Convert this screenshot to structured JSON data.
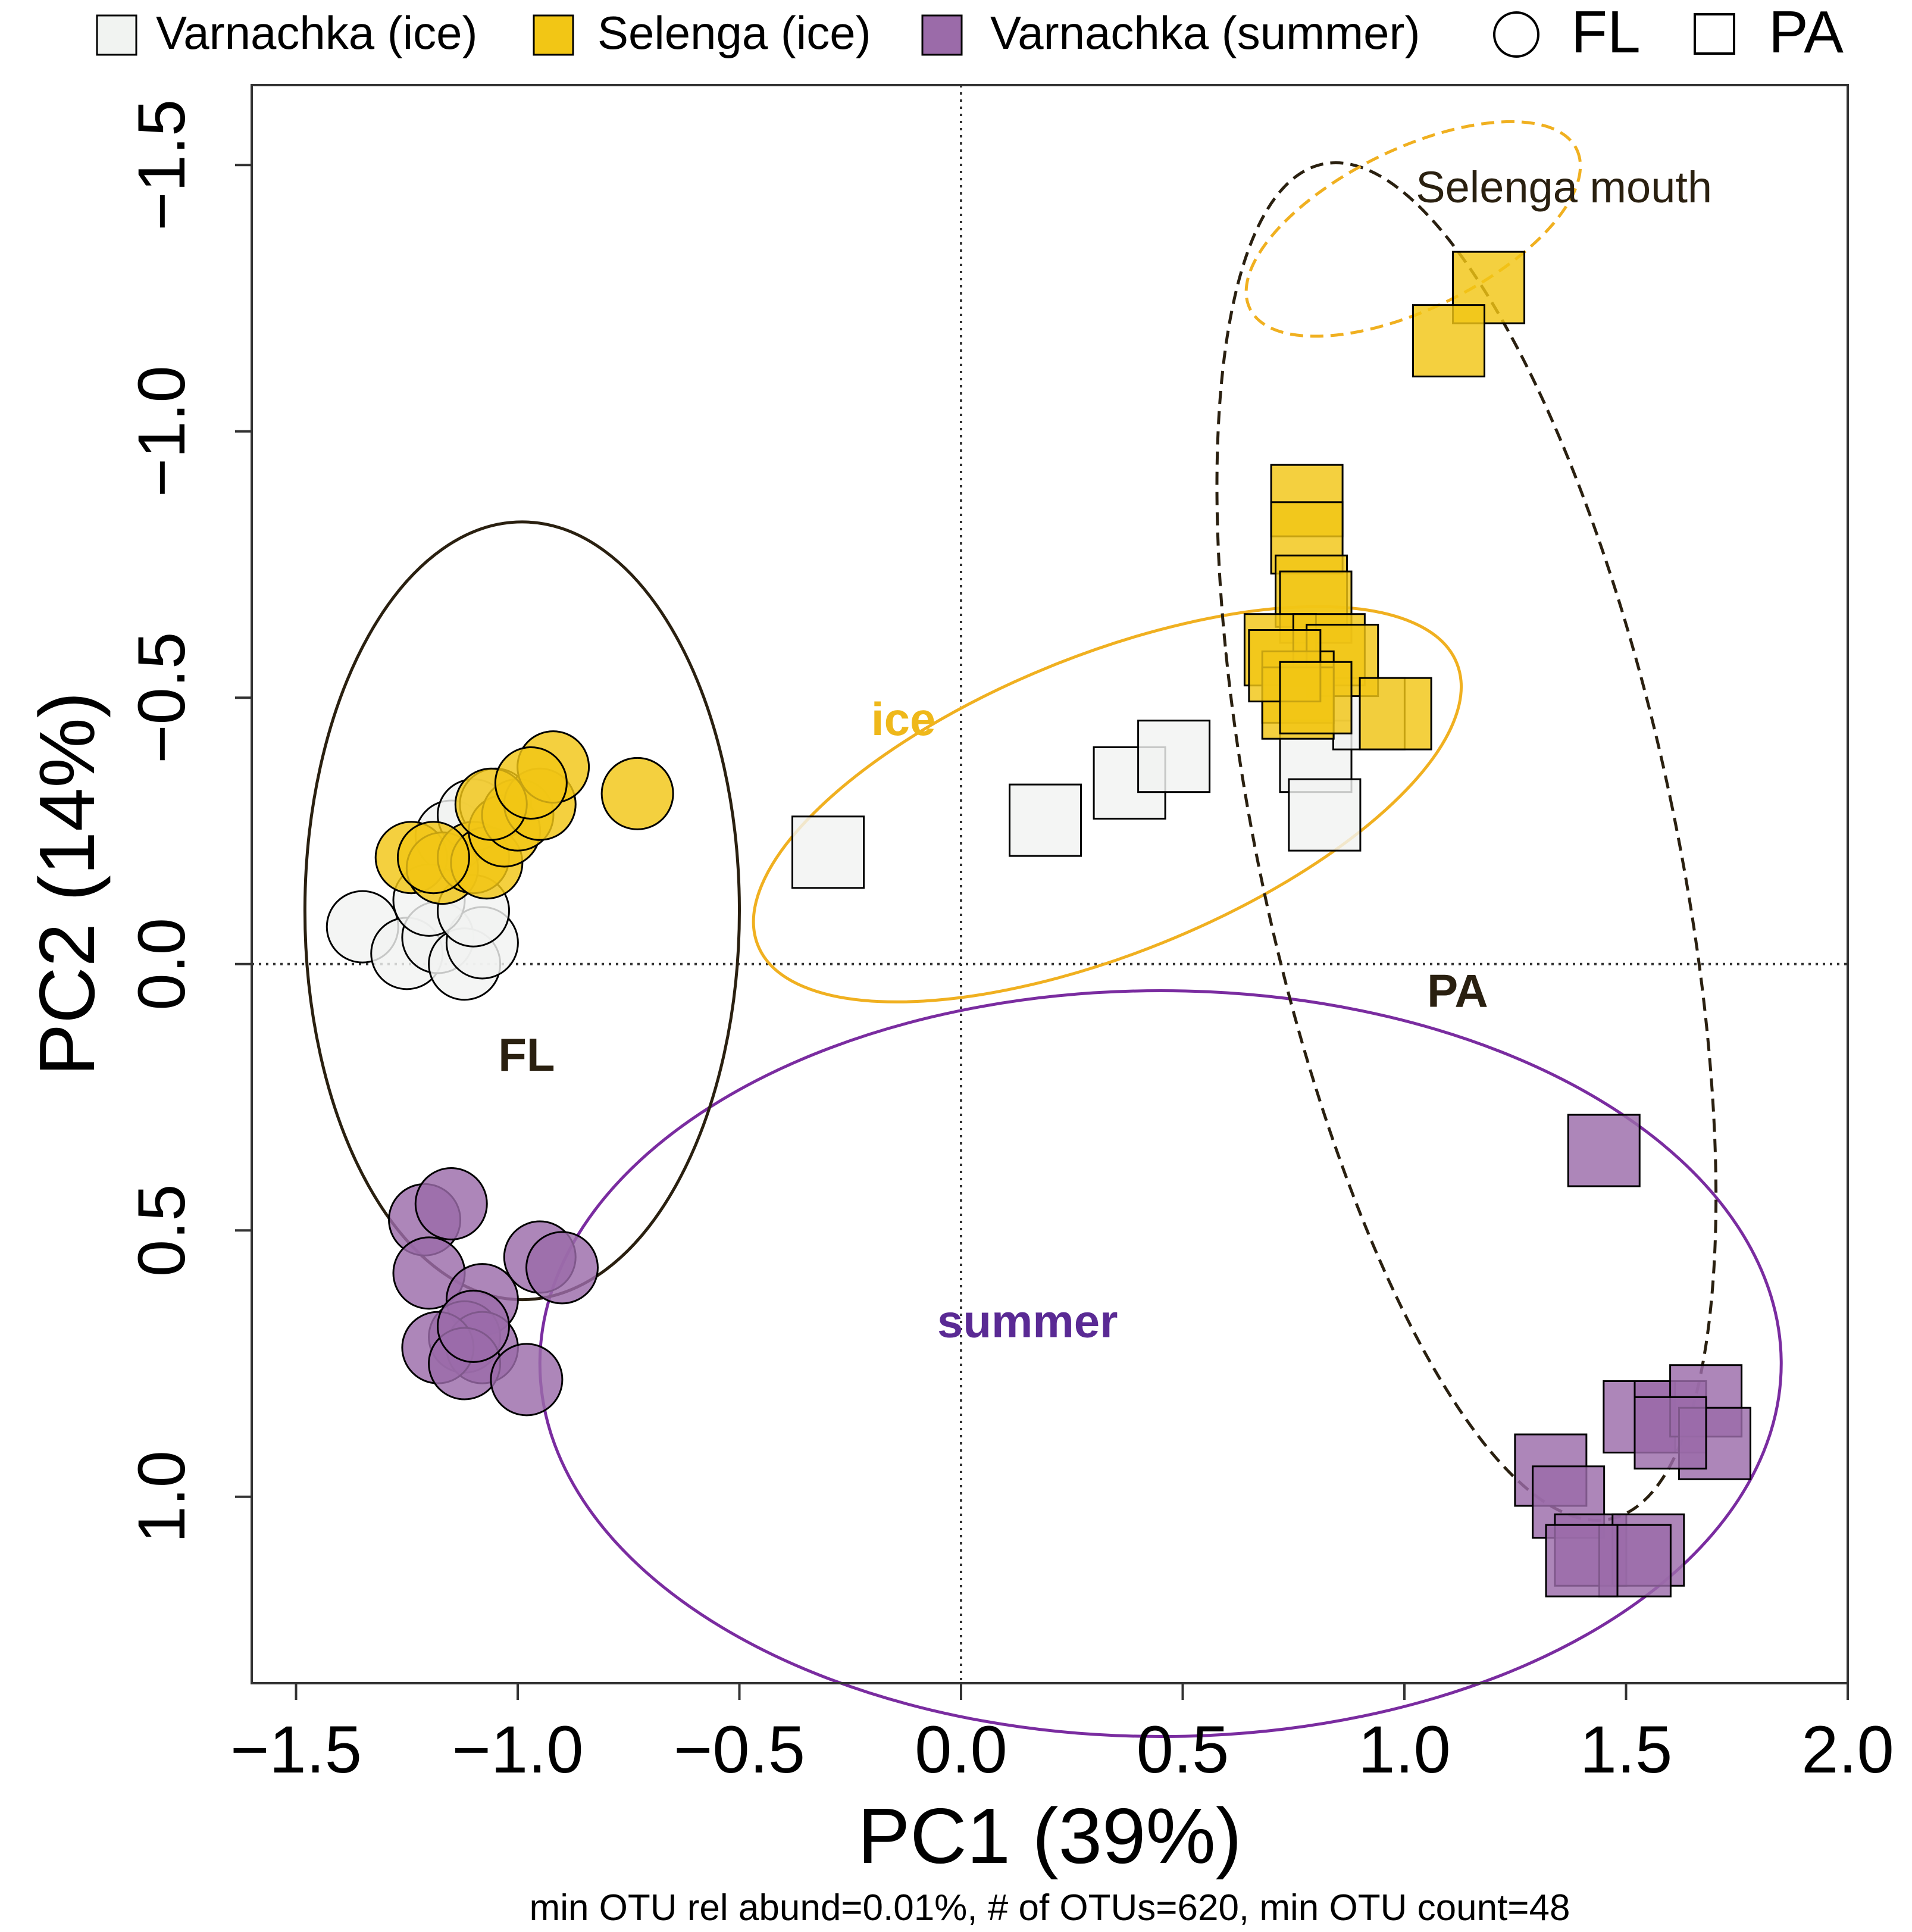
{
  "chart_data": {
    "type": "scatter",
    "title": "",
    "xlabel": "PC1 (39%)",
    "ylabel": "PC2 (14%)",
    "footnote": "min OTU rel abund=0.01%, # of OTUs=620, min OTU count=48",
    "xlim": [
      -1.6,
      2.0
    ],
    "ylim": [
      1.35,
      -1.65
    ],
    "y_axis_inverted": true,
    "x_ticks": [
      -1.5,
      -1.0,
      -0.5,
      0.0,
      0.5,
      1.0,
      1.5,
      2.0
    ],
    "x_tick_labels": [
      "−1.5",
      "−1.0",
      "−0.5",
      "0.0",
      "0.5",
      "1.0",
      "1.5",
      "2.0"
    ],
    "y_ticks": [
      -1.5,
      -1.0,
      -0.5,
      0.0,
      0.5,
      1.0
    ],
    "y_tick_labels": [
      "−1.5",
      "−1.0",
      "−0.5",
      "0.0",
      "0.5",
      "1.0"
    ],
    "reference_lines": {
      "x": 0,
      "y": 0,
      "style": "dotted"
    },
    "legend": {
      "placement": "top",
      "groups": [
        {
          "label": "Varnachka (ice)",
          "color": "#f1f3f1"
        },
        {
          "label": "Selenga (ice)",
          "color": "#f2c615"
        },
        {
          "label": "Varnachka (summer)",
          "color": "#9b6ba9"
        }
      ],
      "shapes": [
        {
          "label": "FL",
          "shape": "circle"
        },
        {
          "label": "PA",
          "shape": "square"
        }
      ]
    },
    "colors": {
      "varnachka_ice": "#f1f3f1",
      "selenga_ice": "#f2c615",
      "varnachka_summer": "#9b6ba9",
      "ellipse_ice": "#f0b020",
      "ellipse_summer": "#7a2ca0",
      "ellipse_fraction": "#2a2010",
      "label_ice": "#efb81a",
      "label_summer": "#5a2a94"
    },
    "series": [
      {
        "name": "Varnachka (ice)",
        "fraction": "FL",
        "shape": "circle",
        "color_key": "varnachka_ice",
        "points": [
          [
            -1.35,
            -0.07
          ],
          [
            -1.25,
            -0.02
          ],
          [
            -1.18,
            -0.05
          ],
          [
            -1.12,
            0.0
          ],
          [
            -1.08,
            -0.04
          ],
          [
            -1.15,
            -0.24
          ],
          [
            -1.1,
            -0.28
          ],
          [
            -1.05,
            -0.3
          ],
          [
            -1.2,
            -0.12
          ],
          [
            -1.1,
            -0.1
          ]
        ]
      },
      {
        "name": "Selenga (ice)",
        "fraction": "FL",
        "shape": "circle",
        "color_key": "selenga_ice",
        "points": [
          [
            -1.24,
            -0.2
          ],
          [
            -1.17,
            -0.18
          ],
          [
            -1.1,
            -0.2
          ],
          [
            -1.07,
            -0.19
          ],
          [
            -1.03,
            -0.25
          ],
          [
            -1.0,
            -0.28
          ],
          [
            -0.95,
            -0.3
          ],
          [
            -0.92,
            -0.37
          ],
          [
            -0.73,
            -0.32
          ],
          [
            -1.06,
            -0.3
          ],
          [
            -1.19,
            -0.2
          ],
          [
            -0.97,
            -0.34
          ]
        ]
      },
      {
        "name": "Varnachka (summer)",
        "fraction": "FL",
        "shape": "circle",
        "color_key": "varnachka_summer",
        "points": [
          [
            -1.21,
            0.48
          ],
          [
            -1.15,
            0.45
          ],
          [
            -1.2,
            0.58
          ],
          [
            -1.08,
            0.63
          ],
          [
            -1.12,
            0.7
          ],
          [
            -1.08,
            0.72
          ],
          [
            -1.18,
            0.72
          ],
          [
            -1.12,
            0.75
          ],
          [
            -0.95,
            0.55
          ],
          [
            -0.9,
            0.57
          ],
          [
            -0.98,
            0.78
          ],
          [
            -1.1,
            0.68
          ]
        ]
      },
      {
        "name": "Varnachka (ice)",
        "fraction": "PA",
        "shape": "square",
        "color_key": "varnachka_ice",
        "points": [
          [
            -0.3,
            -0.21
          ],
          [
            0.19,
            -0.27
          ],
          [
            0.38,
            -0.34
          ],
          [
            0.48,
            -0.39
          ],
          [
            0.8,
            -0.39
          ],
          [
            0.82,
            -0.28
          ],
          [
            0.92,
            -0.47
          ]
        ]
      },
      {
        "name": "Selenga (ice)",
        "fraction": "PA",
        "shape": "square",
        "color_key": "selenga_ice",
        "points": [
          [
            1.19,
            -1.27
          ],
          [
            1.1,
            -1.17
          ],
          [
            0.78,
            -0.87
          ],
          [
            0.78,
            -0.8
          ],
          [
            0.79,
            -0.7
          ],
          [
            0.8,
            -0.67
          ],
          [
            0.72,
            -0.59
          ],
          [
            0.83,
            -0.59
          ],
          [
            0.86,
            -0.57
          ],
          [
            0.76,
            -0.52
          ],
          [
            0.76,
            -0.49
          ],
          [
            0.98,
            -0.47
          ],
          [
            0.73,
            -0.56
          ],
          [
            0.8,
            -0.5
          ]
        ]
      },
      {
        "name": "Varnachka (summer)",
        "fraction": "PA",
        "shape": "square",
        "color_key": "varnachka_summer",
        "points": [
          [
            1.45,
            0.35
          ],
          [
            1.53,
            0.85
          ],
          [
            1.6,
            0.85
          ],
          [
            1.68,
            0.82
          ],
          [
            1.7,
            0.9
          ],
          [
            1.6,
            0.88
          ],
          [
            1.33,
            0.95
          ],
          [
            1.37,
            1.01
          ],
          [
            1.42,
            1.1
          ],
          [
            1.55,
            1.1
          ],
          [
            1.52,
            1.12
          ],
          [
            1.4,
            1.12
          ]
        ]
      }
    ],
    "ellipses": [
      {
        "name": "ice",
        "label": "ice",
        "center": [
          0.33,
          -0.3
        ],
        "radii": [
          0.85,
          0.28
        ],
        "angle_deg": -22.0,
        "color_key": "ellipse_ice",
        "style": "solid",
        "label_position": [
          -0.13,
          -0.43
        ],
        "label_color_key": "label_ice"
      },
      {
        "name": "summer",
        "label": "summer",
        "center": [
          0.45,
          0.75
        ],
        "radii": [
          0.7,
          1.4
        ],
        "angle_deg": 0,
        "color_key": "ellipse_summer",
        "style": "solid",
        "swap_axes": true,
        "label_position": [
          0.15,
          0.7
        ],
        "label_color_key": "label_summer"
      },
      {
        "name": "FL",
        "label": "FL",
        "center": [
          -0.99,
          -0.1
        ],
        "radii": [
          0.49,
          0.73
        ],
        "angle_deg": 0,
        "color_key": "ellipse_fraction",
        "style": "solid",
        "label_position": [
          -0.98,
          0.2
        ],
        "label_color_key": "ellipse_fraction"
      },
      {
        "name": "PA",
        "label": "PA",
        "center": [
          1.14,
          -0.23
        ],
        "radii": [
          0.47,
          1.3
        ],
        "angle_deg": -12,
        "color_key": "ellipse_fraction",
        "style": "dashed",
        "label_position": [
          1.12,
          0.08
        ],
        "label_color_key": "ellipse_fraction"
      },
      {
        "name": "Selenga mouth",
        "label": "Selenga mouth",
        "center": [
          1.02,
          -1.38
        ],
        "radii": [
          0.41,
          0.15
        ],
        "angle_deg": -26,
        "color_key": "ellipse_ice",
        "style": "dashed",
        "label_position": [
          1.36,
          -1.43
        ],
        "label_color_key": "ellipse_fraction"
      }
    ]
  }
}
